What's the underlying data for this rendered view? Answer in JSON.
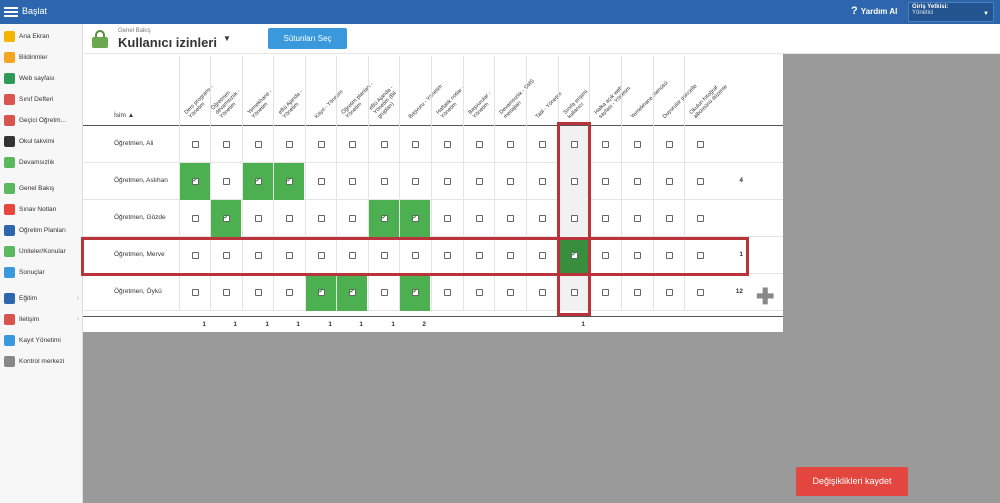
{
  "topbar": {
    "brand": "Başlat",
    "help": "Yardım Al",
    "role_label": "Giriş Yetkisi:",
    "role_value": "Yönetici"
  },
  "sidebar": {
    "items": [
      {
        "label": "Ana Ekran",
        "color": "#f4b400"
      },
      {
        "label": "Bildirimler",
        "color": "#f4a623"
      },
      {
        "label": "Web sayfası",
        "color": "#2e9a5a"
      },
      {
        "label": "Sınıf Defteri",
        "color": "#d9534f"
      },
      {
        "label": "Geçici Öğretm...",
        "color": "#d9534f"
      },
      {
        "label": "Okul takvimi",
        "color": "#333333"
      },
      {
        "label": "Devamsızlık",
        "color": "#5cb85c"
      },
      {
        "label": "Genel Bakış",
        "color": "#5cb85c"
      },
      {
        "label": "Sınav Notları",
        "color": "#e8453c"
      },
      {
        "label": "Öğretim Planları",
        "color": "#2d66ac"
      },
      {
        "label": "Üniteler/Konular",
        "color": "#5cb85c"
      },
      {
        "label": "Sonuçlar",
        "color": "#3a98dc"
      },
      {
        "label": "Eğitim",
        "color": "#2d66ac"
      },
      {
        "label": "İletişim",
        "color": "#d9534f"
      },
      {
        "label": "Kayıt Yönetimi",
        "color": "#3a98dc"
      },
      {
        "label": "Kontrol merkezi",
        "color": "#888888"
      }
    ]
  },
  "header": {
    "crumb": "Genel Bakış",
    "title": "Kullanıcı izinleri",
    "columns_button": "Sütunları Seç"
  },
  "grid": {
    "name_header": "İsim ▲",
    "columns": [
      "Ders programı - Yönetim",
      "Öğretmen devamsızlık - Yönetim",
      "Yemekhane - Yönetim",
      "eBü Ajanda - Yönetim",
      "Kayıt - Yönetim",
      "Öğretim planları - Yönetim",
      "eBü Ajanda - Yönetim (Bil grupları)",
      "Başvuru - Yönetim",
      "Haftalık notlar - Yönetim",
      "Başvurular - Yönetim",
      "Devamsızlık - SMS mesajları",
      "Tatil - Yönetim",
      "Sınıfa erişimi kullanıcı",
      "Halka açık web sayfası - Yönetim",
      "Yemekhane menüsü",
      "Duyurular güncelle",
      "Okulun fotoğraf albümünü düzenle"
    ],
    "rows": [
      {
        "name": "Öğretmen, Ali",
        "count": ""
      },
      {
        "name": "Öğretmen, Aslıhan",
        "count": "4"
      },
      {
        "name": "Öğretmen, Gözde",
        "count": ""
      },
      {
        "name": "Öğretmen, Merve",
        "count": "1"
      },
      {
        "name": "Öğretmen, Öykü",
        "count": "12"
      }
    ],
    "totals": [
      "1",
      "1",
      "1",
      "1",
      "1",
      "1",
      "1",
      "2",
      "",
      "",
      "",
      "",
      "1",
      "",
      "",
      "",
      ""
    ]
  },
  "save_button": "Değişiklikleri kaydet"
}
